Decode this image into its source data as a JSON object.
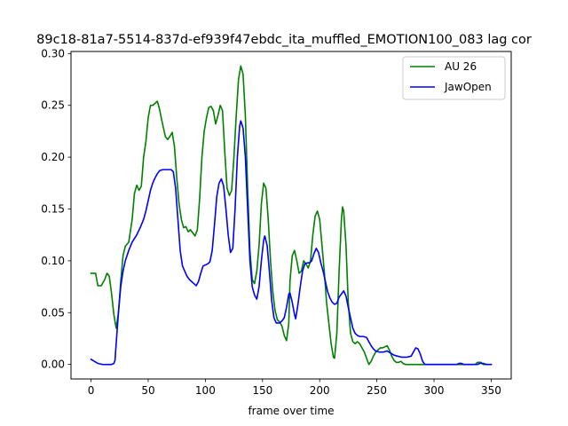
{
  "chart_data": {
    "type": "line",
    "title": "89c18-81a7-5514-837d-ef939f47ebdc_ita_muffled_EMOTION100_083  lag cor",
    "xlabel": "frame over time",
    "ylabel": "",
    "xlim": [
      -17.5,
      367.5
    ],
    "ylim": [
      -0.014,
      0.302
    ],
    "xticks": [
      0,
      50,
      100,
      150,
      200,
      250,
      300,
      350
    ],
    "yticks": [
      0.0,
      0.05,
      0.1,
      0.15,
      0.2,
      0.25,
      0.3
    ],
    "xtick_labels": [
      "0",
      "50",
      "100",
      "150",
      "200",
      "250",
      "300",
      "350"
    ],
    "ytick_labels": [
      "0.00",
      "0.05",
      "0.10",
      "0.15",
      "0.20",
      "0.25",
      "0.30"
    ],
    "grid": false,
    "legend_position": "top-right",
    "series": [
      {
        "name": "AU 26",
        "color": "#008000",
        "points": [
          [
            0,
            0.088
          ],
          [
            4,
            0.088
          ],
          [
            6,
            0.076
          ],
          [
            9,
            0.076
          ],
          [
            12,
            0.082
          ],
          [
            14,
            0.088
          ],
          [
            16,
            0.085
          ],
          [
            18,
            0.068
          ],
          [
            20,
            0.048
          ],
          [
            22,
            0.035
          ],
          [
            24,
            0.05
          ],
          [
            26,
            0.08
          ],
          [
            28,
            0.105
          ],
          [
            30,
            0.114
          ],
          [
            33,
            0.118
          ],
          [
            36,
            0.14
          ],
          [
            38,
            0.165
          ],
          [
            40,
            0.173
          ],
          [
            42,
            0.168
          ],
          [
            44,
            0.172
          ],
          [
            46,
            0.2
          ],
          [
            48,
            0.215
          ],
          [
            50,
            0.238
          ],
          [
            52,
            0.25
          ],
          [
            54,
            0.25
          ],
          [
            56,
            0.252
          ],
          [
            58,
            0.254
          ],
          [
            60,
            0.246
          ],
          [
            62,
            0.235
          ],
          [
            65,
            0.22
          ],
          [
            67,
            0.217
          ],
          [
            69,
            0.22
          ],
          [
            71,
            0.224
          ],
          [
            73,
            0.21
          ],
          [
            75,
            0.18
          ],
          [
            77,
            0.155
          ],
          [
            79,
            0.14
          ],
          [
            81,
            0.132
          ],
          [
            83,
            0.133
          ],
          [
            85,
            0.128
          ],
          [
            87,
            0.13
          ],
          [
            89,
            0.127
          ],
          [
            91,
            0.124
          ],
          [
            93,
            0.13
          ],
          [
            95,
            0.16
          ],
          [
            97,
            0.2
          ],
          [
            99,
            0.225
          ],
          [
            101,
            0.238
          ],
          [
            103,
            0.248
          ],
          [
            105,
            0.249
          ],
          [
            107,
            0.245
          ],
          [
            109,
            0.232
          ],
          [
            111,
            0.24
          ],
          [
            113,
            0.25
          ],
          [
            115,
            0.245
          ],
          [
            117,
            0.205
          ],
          [
            119,
            0.17
          ],
          [
            121,
            0.163
          ],
          [
            123,
            0.168
          ],
          [
            125,
            0.2
          ],
          [
            127,
            0.24
          ],
          [
            129,
            0.275
          ],
          [
            131,
            0.288
          ],
          [
            133,
            0.28
          ],
          [
            135,
            0.24
          ],
          [
            137,
            0.17
          ],
          [
            139,
            0.11
          ],
          [
            141,
            0.082
          ],
          [
            143,
            0.078
          ],
          [
            145,
            0.09
          ],
          [
            147,
            0.115
          ],
          [
            149,
            0.155
          ],
          [
            151,
            0.175
          ],
          [
            153,
            0.17
          ],
          [
            155,
            0.14
          ],
          [
            157,
            0.1
          ],
          [
            159,
            0.07
          ],
          [
            161,
            0.052
          ],
          [
            163,
            0.043
          ],
          [
            165,
            0.041
          ],
          [
            167,
            0.037
          ],
          [
            169,
            0.028
          ],
          [
            171,
            0.023
          ],
          [
            173,
            0.04
          ],
          [
            174,
            0.08
          ],
          [
            176,
            0.105
          ],
          [
            178,
            0.11
          ],
          [
            180,
            0.1
          ],
          [
            182,
            0.088
          ],
          [
            184,
            0.09
          ],
          [
            186,
            0.1
          ],
          [
            188,
            0.097
          ],
          [
            190,
            0.093
          ],
          [
            192,
            0.1
          ],
          [
            194,
            0.125
          ],
          [
            196,
            0.143
          ],
          [
            198,
            0.148
          ],
          [
            200,
            0.14
          ],
          [
            202,
            0.115
          ],
          [
            204,
            0.09
          ],
          [
            206,
            0.06
          ],
          [
            208,
            0.04
          ],
          [
            210,
            0.02
          ],
          [
            212,
            0.007
          ],
          [
            213,
            0.006
          ],
          [
            215,
            0.03
          ],
          [
            217,
            0.09
          ],
          [
            219,
            0.14
          ],
          [
            220,
            0.152
          ],
          [
            221,
            0.148
          ],
          [
            223,
            0.115
          ],
          [
            225,
            0.06
          ],
          [
            227,
            0.03
          ],
          [
            229,
            0.022
          ],
          [
            231,
            0.02
          ],
          [
            233,
            0.022
          ],
          [
            235,
            0.02
          ],
          [
            237,
            0.016
          ],
          [
            239,
            0.012
          ],
          [
            241,
            0.006
          ],
          [
            243,
            0.0
          ],
          [
            245,
            0.003
          ],
          [
            247,
            0.008
          ],
          [
            249,
            0.012
          ],
          [
            251,
            0.014
          ],
          [
            253,
            0.016
          ],
          [
            255,
            0.016
          ],
          [
            257,
            0.017
          ],
          [
            259,
            0.018
          ],
          [
            261,
            0.014
          ],
          [
            263,
            0.008
          ],
          [
            265,
            0.004
          ],
          [
            267,
            0.002
          ],
          [
            269,
            0.002
          ],
          [
            271,
            0.003
          ],
          [
            273,
            0.001
          ],
          [
            275,
            0.0
          ],
          [
            280,
            0.0
          ],
          [
            300,
            0.0
          ],
          [
            320,
            0.0
          ],
          [
            330,
            0.0
          ],
          [
            336,
            0.0
          ],
          [
            338,
            0.002
          ],
          [
            341,
            0.002
          ],
          [
            343,
            0.0
          ],
          [
            350,
            0.0
          ]
        ]
      },
      {
        "name": "JawOpen",
        "color": "#0000ff",
        "points": [
          [
            0,
            0.005
          ],
          [
            3,
            0.003
          ],
          [
            6,
            0.001
          ],
          [
            10,
            0.0
          ],
          [
            15,
            0.0
          ],
          [
            18,
            0.0
          ],
          [
            20,
            0.001
          ],
          [
            21,
            0.004
          ],
          [
            22,
            0.02
          ],
          [
            24,
            0.05
          ],
          [
            26,
            0.075
          ],
          [
            28,
            0.09
          ],
          [
            30,
            0.1
          ],
          [
            33,
            0.11
          ],
          [
            36,
            0.118
          ],
          [
            40,
            0.125
          ],
          [
            43,
            0.132
          ],
          [
            46,
            0.14
          ],
          [
            48,
            0.148
          ],
          [
            50,
            0.158
          ],
          [
            52,
            0.168
          ],
          [
            54,
            0.175
          ],
          [
            56,
            0.18
          ],
          [
            58,
            0.184
          ],
          [
            60,
            0.187
          ],
          [
            63,
            0.188
          ],
          [
            66,
            0.188
          ],
          [
            70,
            0.188
          ],
          [
            72,
            0.186
          ],
          [
            74,
            0.17
          ],
          [
            76,
            0.14
          ],
          [
            78,
            0.11
          ],
          [
            80,
            0.095
          ],
          [
            82,
            0.09
          ],
          [
            84,
            0.085
          ],
          [
            86,
            0.082
          ],
          [
            88,
            0.08
          ],
          [
            90,
            0.078
          ],
          [
            92,
            0.076
          ],
          [
            94,
            0.08
          ],
          [
            96,
            0.088
          ],
          [
            98,
            0.095
          ],
          [
            100,
            0.096
          ],
          [
            102,
            0.097
          ],
          [
            104,
            0.099
          ],
          [
            106,
            0.11
          ],
          [
            108,
            0.135
          ],
          [
            110,
            0.162
          ],
          [
            112,
            0.175
          ],
          [
            114,
            0.179
          ],
          [
            116,
            0.172
          ],
          [
            118,
            0.15
          ],
          [
            120,
            0.125
          ],
          [
            122,
            0.108
          ],
          [
            124,
            0.112
          ],
          [
            126,
            0.15
          ],
          [
            128,
            0.2
          ],
          [
            130,
            0.23
          ],
          [
            131,
            0.235
          ],
          [
            133,
            0.228
          ],
          [
            135,
            0.2
          ],
          [
            137,
            0.15
          ],
          [
            139,
            0.1
          ],
          [
            141,
            0.075
          ],
          [
            143,
            0.067
          ],
          [
            145,
            0.063
          ],
          [
            147,
            0.075
          ],
          [
            149,
            0.1
          ],
          [
            151,
            0.12
          ],
          [
            152,
            0.124
          ],
          [
            154,
            0.115
          ],
          [
            156,
            0.09
          ],
          [
            158,
            0.062
          ],
          [
            160,
            0.045
          ],
          [
            162,
            0.04
          ],
          [
            165,
            0.04
          ],
          [
            167,
            0.042
          ],
          [
            169,
            0.045
          ],
          [
            171,
            0.055
          ],
          [
            173,
            0.068
          ],
          [
            174,
            0.069
          ],
          [
            176,
            0.06
          ],
          [
            178,
            0.048
          ],
          [
            179,
            0.044
          ],
          [
            181,
            0.058
          ],
          [
            183,
            0.075
          ],
          [
            185,
            0.09
          ],
          [
            187,
            0.097
          ],
          [
            189,
            0.098
          ],
          [
            191,
            0.098
          ],
          [
            193,
            0.1
          ],
          [
            195,
            0.107
          ],
          [
            197,
            0.112
          ],
          [
            199,
            0.108
          ],
          [
            201,
            0.098
          ],
          [
            203,
            0.09
          ],
          [
            205,
            0.08
          ],
          [
            207,
            0.07
          ],
          [
            209,
            0.064
          ],
          [
            211,
            0.06
          ],
          [
            213,
            0.058
          ],
          [
            215,
            0.059
          ],
          [
            217,
            0.065
          ],
          [
            219,
            0.068
          ],
          [
            221,
            0.071
          ],
          [
            223,
            0.066
          ],
          [
            225,
            0.055
          ],
          [
            227,
            0.045
          ],
          [
            229,
            0.035
          ],
          [
            231,
            0.03
          ],
          [
            233,
            0.028
          ],
          [
            235,
            0.027
          ],
          [
            238,
            0.027
          ],
          [
            241,
            0.026
          ],
          [
            243,
            0.022
          ],
          [
            245,
            0.018
          ],
          [
            247,
            0.015
          ],
          [
            249,
            0.013
          ],
          [
            252,
            0.012
          ],
          [
            256,
            0.012
          ],
          [
            259,
            0.013
          ],
          [
            262,
            0.011
          ],
          [
            265,
            0.009
          ],
          [
            268,
            0.008
          ],
          [
            272,
            0.007
          ],
          [
            276,
            0.007
          ],
          [
            280,
            0.008
          ],
          [
            282,
            0.012
          ],
          [
            284,
            0.016
          ],
          [
            286,
            0.015
          ],
          [
            288,
            0.01
          ],
          [
            290,
            0.003
          ],
          [
            292,
            0.0
          ],
          [
            300,
            0.0
          ],
          [
            310,
            0.0
          ],
          [
            320,
            0.0
          ],
          [
            322,
            0.001
          ],
          [
            324,
            0.001
          ],
          [
            326,
            0.0
          ],
          [
            338,
            0.0
          ],
          [
            340,
            0.001
          ],
          [
            343,
            0.001
          ],
          [
            346,
            0.0
          ],
          [
            350,
            0.0
          ]
        ]
      }
    ]
  }
}
